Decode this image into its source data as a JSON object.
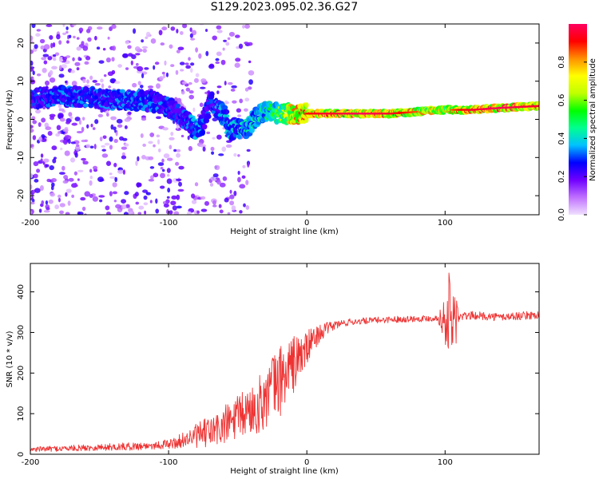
{
  "page": {
    "title": "S129.2023.095.02.36.G27"
  },
  "chart_data": [
    {
      "type": "heatmap",
      "xlabel": "Height of straight line (km)",
      "ylabel": "Frequency (Hz)",
      "xlim": [
        -200,
        168
      ],
      "ylim": [
        -25,
        25
      ],
      "x_ticks": [
        -200,
        -100,
        0,
        100
      ],
      "y_ticks": [
        -20,
        -10,
        0,
        10,
        20
      ],
      "grid": false,
      "colorbar": {
        "label": "Normalized spectral amplitude",
        "range": [
          0.0,
          1.0
        ],
        "ticks": [
          0.0,
          0.2,
          0.4,
          0.6,
          0.8
        ],
        "colormap": [
          "#f0e0ff",
          "#c070ff",
          "#7000ff",
          "#0000ff",
          "#00c0ff",
          "#00ff90",
          "#00ff00",
          "#c0ff00",
          "#ffff00",
          "#ff9000",
          "#ff0000",
          "#ff0060"
        ]
      },
      "ridge": {
        "x": [
          -200,
          -180,
          -160,
          -140,
          -120,
          -105,
          -95,
          -85,
          -80,
          -75,
          -70,
          -65,
          -60,
          -55,
          -50,
          -45,
          -40,
          -35,
          -30,
          -25,
          -20,
          -10,
          0,
          10,
          20,
          40,
          60,
          80,
          100,
          110,
          120,
          140,
          168
        ],
        "freq": [
          5.5,
          6,
          6,
          5,
          5,
          4,
          2,
          -1,
          -3,
          -1,
          5,
          3,
          1,
          -3,
          -2,
          -3,
          -1,
          1,
          2,
          2,
          1.5,
          1.5,
          1.5,
          1.5,
          1.5,
          1.5,
          1.5,
          2,
          2.5,
          2.5,
          2.5,
          3,
          3.5
        ],
        "amplitude": [
          0.3,
          0.35,
          0.35,
          0.35,
          0.35,
          0.35,
          0.3,
          0.35,
          0.4,
          0.35,
          0.3,
          0.35,
          0.4,
          0.4,
          0.4,
          0.45,
          0.45,
          0.45,
          0.5,
          0.55,
          0.6,
          0.85,
          0.9,
          0.95,
          0.95,
          1.0,
          0.95,
          0.85,
          0.8,
          0.9,
          0.95,
          1.0,
          0.95
        ]
      },
      "noise_scatter": {
        "x_range": [
          -200,
          -40
        ],
        "freq_range": [
          -25,
          25
        ],
        "amplitude_range": [
          0.02,
          0.25
        ]
      }
    },
    {
      "type": "line",
      "xlabel": "Height of straight line (km)",
      "ylabel": "SNR (10 * v/v)",
      "xlim": [
        -200,
        168
      ],
      "ylim": [
        0,
        470
      ],
      "x_ticks": [
        -200,
        -100,
        0,
        100
      ],
      "y_ticks": [
        0,
        100,
        200,
        300,
        400
      ],
      "grid": false,
      "series": [
        {
          "color": "#ee3333",
          "x": [
            -200,
            -180,
            -160,
            -140,
            -120,
            -110,
            -100,
            -95,
            -90,
            -85,
            -80,
            -75,
            -70,
            -65,
            -60,
            -55,
            -50,
            -45,
            -40,
            -35,
            -30,
            -25,
            -20,
            -15,
            -10,
            -5,
            0,
            5,
            10,
            15,
            20,
            25,
            30,
            35,
            40,
            50,
            60,
            70,
            80,
            90,
            95,
            100,
            103,
            105,
            107,
            110,
            115,
            120,
            130,
            140,
            150,
            160,
            168
          ],
          "y": [
            12,
            14,
            16,
            18,
            20,
            22,
            25,
            28,
            35,
            40,
            45,
            50,
            55,
            60,
            70,
            80,
            90,
            100,
            110,
            120,
            140,
            160,
            180,
            200,
            220,
            240,
            260,
            285,
            300,
            310,
            318,
            322,
            325,
            327,
            328,
            330,
            332,
            333,
            334,
            335,
            335,
            330,
            340,
            320,
            335,
            338,
            340,
            342,
            340,
            338,
            340,
            342,
            343
          ],
          "noise_amplitude": [
            6,
            7,
            8,
            9,
            10,
            10,
            12,
            15,
            18,
            22,
            30,
            35,
            40,
            45,
            50,
            55,
            55,
            60,
            65,
            70,
            80,
            90,
            90,
            85,
            75,
            60,
            45,
            30,
            20,
            15,
            12,
            10,
            9,
            8,
            8,
            8,
            8,
            8,
            8,
            8,
            8,
            60,
            120,
            150,
            100,
            12,
            10,
            10,
            10,
            10,
            10,
            10,
            10
          ]
        }
      ]
    }
  ]
}
